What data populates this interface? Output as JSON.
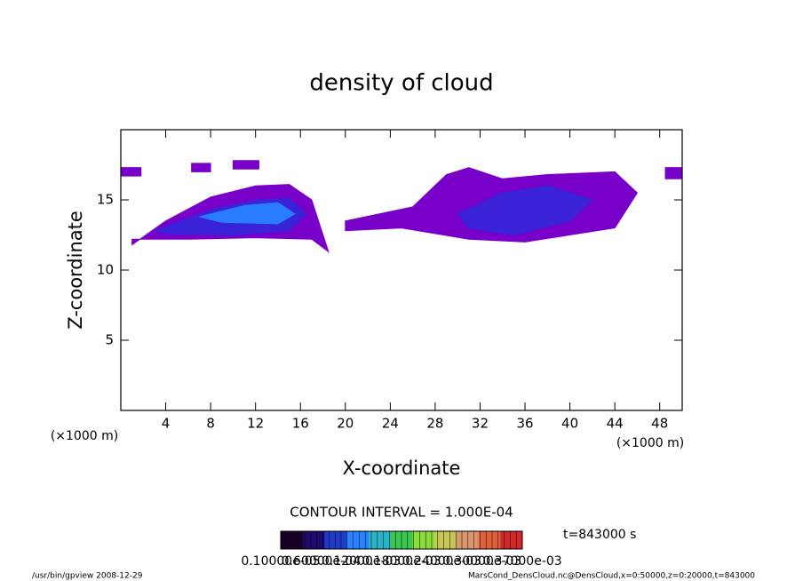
{
  "chart_data": {
    "type": "contour",
    "title": "density of cloud",
    "xlabel": "X-coordinate",
    "ylabel": "Z-coordinate",
    "xunit_left": "(×1000 m)",
    "xunit_right": "(×1000 m)",
    "xlim": [
      0,
      50
    ],
    "ylim": [
      0,
      20
    ],
    "xticks": [
      4,
      8,
      12,
      16,
      20,
      24,
      28,
      32,
      36,
      40,
      44,
      48
    ],
    "yticks": [
      5,
      10,
      15
    ],
    "regions": [
      {
        "color": "#7800c8",
        "x": [
          1,
          4,
          8,
          12,
          15,
          17,
          18.5,
          17,
          12,
          6,
          1
        ],
        "z": [
          11.8,
          13.5,
          15.2,
          16,
          16.1,
          15,
          11.3,
          12.2,
          12.3,
          12.2,
          12.2
        ]
      },
      {
        "color": "#3a22d8",
        "x": [
          3,
          8,
          12,
          15,
          16.5,
          15,
          10,
          4
        ],
        "z": [
          12.8,
          14.3,
          15,
          15.1,
          14,
          12.8,
          12.5,
          12.6
        ]
      },
      {
        "color": "#2a7cff",
        "x": [
          7,
          11,
          14,
          15.5,
          14,
          9
        ],
        "z": [
          13.8,
          14.6,
          14.8,
          14,
          13.3,
          13.4
        ]
      },
      {
        "color": "#7800c8",
        "x": [
          20,
          26,
          29,
          31,
          34,
          38,
          44,
          46,
          44,
          36,
          31,
          25,
          20
        ],
        "z": [
          13.5,
          14.5,
          16.8,
          17.3,
          16.5,
          16.8,
          17,
          15.5,
          13,
          12,
          12.2,
          13,
          12.8
        ]
      },
      {
        "color": "#3a22d8",
        "x": [
          30,
          34,
          38,
          42,
          40,
          35,
          31
        ],
        "z": [
          14,
          15.5,
          16,
          15,
          13.5,
          12.5,
          13
        ]
      },
      {
        "color": "#7800c8",
        "x": [
          6.3,
          8,
          8,
          6.3
        ],
        "z": [
          17.6,
          17.6,
          17,
          17
        ]
      },
      {
        "color": "#7800c8",
        "x": [
          0,
          1.8,
          1.8,
          0
        ],
        "z": [
          17.3,
          17.3,
          16.7,
          16.7
        ]
      },
      {
        "color": "#7800c8",
        "x": [
          48.5,
          50,
          50,
          48.5
        ],
        "z": [
          17.3,
          17.3,
          16.5,
          16.5
        ]
      },
      {
        "color": "#7800c8",
        "x": [
          10,
          12.3,
          12.3,
          10
        ],
        "z": [
          17.8,
          17.8,
          17.2,
          17.2
        ]
      }
    ],
    "contour_interval": "CONTOUR INTERVAL = 1.000E-04",
    "time_label": "t=843000 s",
    "colorbar_colors": [
      "#1a0028",
      "#1e0a6e",
      "#1e3cc8",
      "#2882ff",
      "#28b4c8",
      "#3cc850",
      "#8cdc3c",
      "#c8c85a",
      "#dc966e",
      "#e0603c",
      "#d22828"
    ],
    "colorbar_labels": [
      "0.10000e-05",
      "0.60000e-04",
      "0.12000e-03",
      "0.18000e-03",
      "0.24000e-03",
      "0.30000e-03",
      "0.37000e-03"
    ],
    "footer_left": "/usr/bin/gpview  2008-12-29",
    "footer_right": "MarsCond_DensCloud.nc@DensCloud,x=0:50000,z=0:20000,t=843000"
  }
}
